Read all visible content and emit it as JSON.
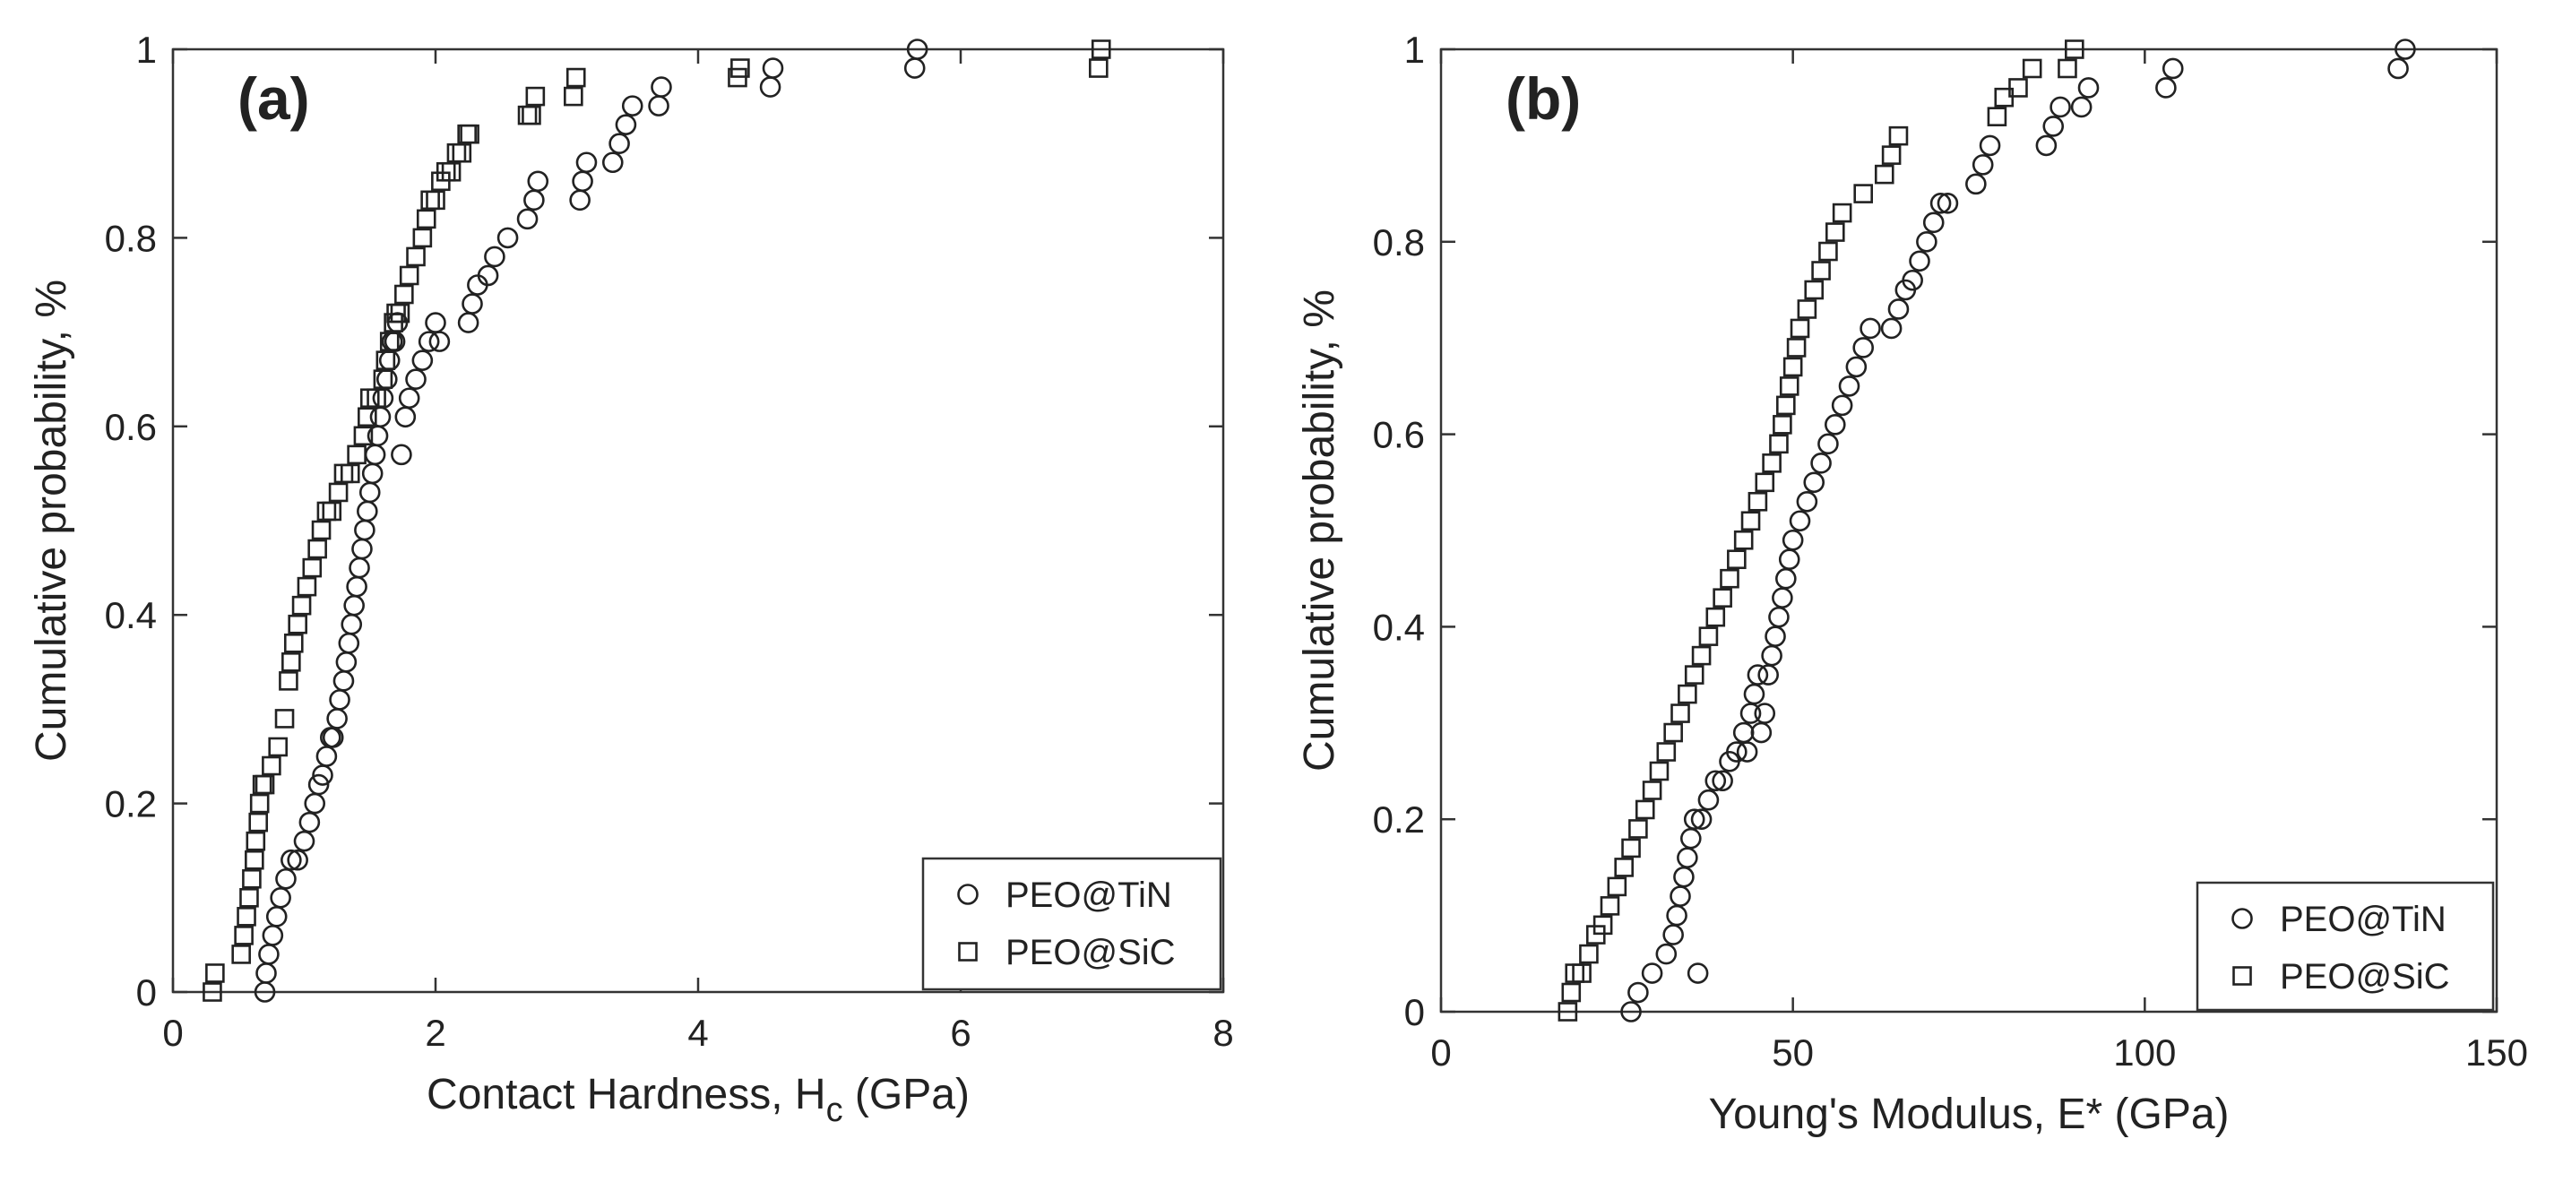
{
  "chart_data": [
    {
      "type": "scatter",
      "panel_label": "(a)",
      "xlabel_main": "Contact Hardness, H",
      "xlabel_sub": "c",
      "xlabel_tail": " (GPa)",
      "ylabel": "Cumulative probability, %",
      "xlim": [
        0,
        8
      ],
      "ylim": [
        0,
        1
      ],
      "xticks": [
        0,
        2,
        4,
        6,
        8
      ],
      "xtick_labels": [
        "0",
        "2",
        "4",
        "6",
        "8"
      ],
      "yticks": [
        0,
        0.2,
        0.4,
        0.6,
        0.8,
        1
      ],
      "ytick_labels": [
        "0",
        "0.2",
        "0.4",
        "0.6",
        "0.8",
        "1"
      ],
      "grid": false,
      "legend_position": "bottom-right",
      "series": [
        {
          "name": "PEO@TiN",
          "marker": "circle",
          "x": [
            0.7,
            0.71,
            0.73,
            0.76,
            0.79,
            0.82,
            0.86,
            0.9,
            0.95,
            1.0,
            1.04,
            1.08,
            1.11,
            1.14,
            1.17,
            1.2,
            1.22,
            1.25,
            1.27,
            1.3,
            1.32,
            1.34,
            1.36,
            1.38,
            1.4,
            1.42,
            1.44,
            1.46,
            1.48,
            1.5,
            1.52,
            1.54,
            1.56,
            1.58,
            1.6,
            1.63,
            1.65,
            1.67,
            1.69,
            1.71,
            1.74,
            1.77,
            1.8,
            1.85,
            1.9,
            1.95,
            2.0,
            2.03,
            2.25,
            2.28,
            2.32,
            2.4,
            2.45,
            2.55,
            2.7,
            2.75,
            2.78,
            3.1,
            3.12,
            3.15,
            3.35,
            3.4,
            3.45,
            3.5,
            3.7,
            3.72,
            4.55,
            4.57,
            5.65,
            5.67
          ],
          "y": [
            0.0,
            0.02,
            0.04,
            0.06,
            0.08,
            0.1,
            0.12,
            0.14,
            0.14,
            0.16,
            0.18,
            0.2,
            0.22,
            0.23,
            0.25,
            0.27,
            0.27,
            0.29,
            0.31,
            0.33,
            0.35,
            0.37,
            0.39,
            0.41,
            0.43,
            0.45,
            0.47,
            0.49,
            0.51,
            0.53,
            0.55,
            0.57,
            0.59,
            0.61,
            0.63,
            0.65,
            0.67,
            0.69,
            0.69,
            0.71,
            0.57,
            0.61,
            0.63,
            0.65,
            0.67,
            0.69,
            0.71,
            0.69,
            0.71,
            0.73,
            0.75,
            0.76,
            0.78,
            0.8,
            0.82,
            0.84,
            0.86,
            0.84,
            0.86,
            0.88,
            0.88,
            0.9,
            0.92,
            0.94,
            0.94,
            0.96,
            0.96,
            0.98,
            0.98,
            1.0
          ]
        },
        {
          "name": "PEO@SiC",
          "marker": "square",
          "x": [
            0.3,
            0.32,
            0.52,
            0.54,
            0.56,
            0.58,
            0.6,
            0.62,
            0.63,
            0.65,
            0.66,
            0.68,
            0.7,
            0.75,
            0.8,
            0.85,
            0.88,
            0.9,
            0.92,
            0.95,
            0.98,
            1.02,
            1.06,
            1.1,
            1.13,
            1.17,
            1.21,
            1.26,
            1.3,
            1.35,
            1.4,
            1.45,
            1.48,
            1.5,
            1.55,
            1.6,
            1.62,
            1.65,
            1.68,
            1.7,
            1.73,
            1.76,
            1.8,
            1.85,
            1.9,
            1.93,
            1.96,
            2.0,
            2.04,
            2.08,
            2.12,
            2.16,
            2.2,
            2.24,
            2.26,
            2.7,
            2.73,
            2.76,
            3.05,
            3.07,
            4.3,
            4.32,
            7.05,
            7.07
          ],
          "y": [
            0.0,
            0.02,
            0.04,
            0.06,
            0.08,
            0.1,
            0.12,
            0.14,
            0.16,
            0.18,
            0.2,
            0.22,
            0.22,
            0.24,
            0.26,
            0.29,
            0.33,
            0.35,
            0.37,
            0.39,
            0.41,
            0.43,
            0.45,
            0.47,
            0.49,
            0.51,
            0.51,
            0.53,
            0.55,
            0.55,
            0.57,
            0.59,
            0.61,
            0.63,
            0.63,
            0.65,
            0.67,
            0.69,
            0.71,
            0.72,
            0.72,
            0.74,
            0.76,
            0.78,
            0.8,
            0.82,
            0.84,
            0.84,
            0.86,
            0.87,
            0.87,
            0.89,
            0.89,
            0.91,
            0.91,
            0.93,
            0.93,
            0.95,
            0.95,
            0.97,
            0.97,
            0.98,
            0.98,
            1.0
          ]
        }
      ]
    },
    {
      "type": "scatter",
      "panel_label": "(b)",
      "xlabel_main": "Young's Modulus, E* (GPa)",
      "xlabel_sub": "",
      "xlabel_tail": "",
      "ylabel": "Cumulative probability, %",
      "xlim": [
        0,
        150
      ],
      "ylim": [
        0,
        1
      ],
      "xticks": [
        0,
        50,
        100,
        150
      ],
      "xtick_labels": [
        "0",
        "50",
        "100",
        "150"
      ],
      "yticks": [
        0,
        0.2,
        0.4,
        0.6,
        0.8,
        1
      ],
      "ytick_labels": [
        "0",
        "0.2",
        "0.4",
        "0.6",
        "0.8",
        "1"
      ],
      "grid": false,
      "legend_position": "bottom-right",
      "series": [
        {
          "name": "PEO@TiN",
          "marker": "circle",
          "x": [
            27,
            28,
            30,
            32,
            33,
            33.5,
            34,
            34.5,
            35,
            35.5,
            36,
            36.5,
            37,
            38,
            39,
            40,
            41,
            42,
            43,
            43.5,
            44,
            44.5,
            45,
            45.5,
            46,
            46.5,
            47,
            47.5,
            48,
            48.5,
            49,
            49.5,
            50,
            51,
            52,
            53,
            54,
            55,
            56,
            57,
            58,
            59,
            60,
            61,
            64,
            65,
            66,
            67,
            68,
            69,
            70,
            71,
            72,
            76,
            77,
            78,
            86,
            87,
            88,
            91,
            92,
            103,
            104,
            136,
            137
          ],
          "y": [
            0.0,
            0.02,
            0.04,
            0.06,
            0.08,
            0.1,
            0.12,
            0.14,
            0.16,
            0.18,
            0.2,
            0.04,
            0.2,
            0.22,
            0.24,
            0.24,
            0.26,
            0.27,
            0.29,
            0.27,
            0.31,
            0.33,
            0.35,
            0.29,
            0.31,
            0.35,
            0.37,
            0.39,
            0.41,
            0.43,
            0.45,
            0.47,
            0.49,
            0.51,
            0.53,
            0.55,
            0.57,
            0.59,
            0.61,
            0.63,
            0.65,
            0.67,
            0.69,
            0.71,
            0.71,
            0.73,
            0.75,
            0.76,
            0.78,
            0.8,
            0.82,
            0.84,
            0.84,
            0.86,
            0.88,
            0.9,
            0.9,
            0.92,
            0.94,
            0.94,
            0.96,
            0.96,
            0.98,
            0.98,
            1.0
          ]
        },
        {
          "name": "PEO@SiC",
          "marker": "square",
          "x": [
            18,
            18.5,
            19,
            20,
            21,
            22,
            23,
            24,
            25,
            26,
            27,
            28,
            29,
            30,
            31,
            32,
            33,
            34,
            35,
            36,
            37,
            38,
            39,
            40,
            41,
            42,
            43,
            44,
            45,
            46,
            47,
            48,
            48.5,
            49,
            49.5,
            50,
            50.5,
            51,
            52,
            53,
            54,
            55,
            56,
            57,
            60,
            63,
            64,
            65,
            79,
            80,
            82,
            84,
            89,
            90
          ],
          "y": [
            0.0,
            0.02,
            0.04,
            0.04,
            0.06,
            0.08,
            0.09,
            0.11,
            0.13,
            0.15,
            0.17,
            0.19,
            0.21,
            0.23,
            0.25,
            0.27,
            0.29,
            0.31,
            0.33,
            0.35,
            0.37,
            0.39,
            0.41,
            0.43,
            0.45,
            0.47,
            0.49,
            0.51,
            0.53,
            0.55,
            0.57,
            0.59,
            0.61,
            0.63,
            0.65,
            0.67,
            0.69,
            0.71,
            0.73,
            0.75,
            0.77,
            0.79,
            0.81,
            0.83,
            0.85,
            0.87,
            0.89,
            0.91,
            0.93,
            0.95,
            0.96,
            0.98,
            0.98,
            1.0
          ]
        }
      ]
    }
  ]
}
